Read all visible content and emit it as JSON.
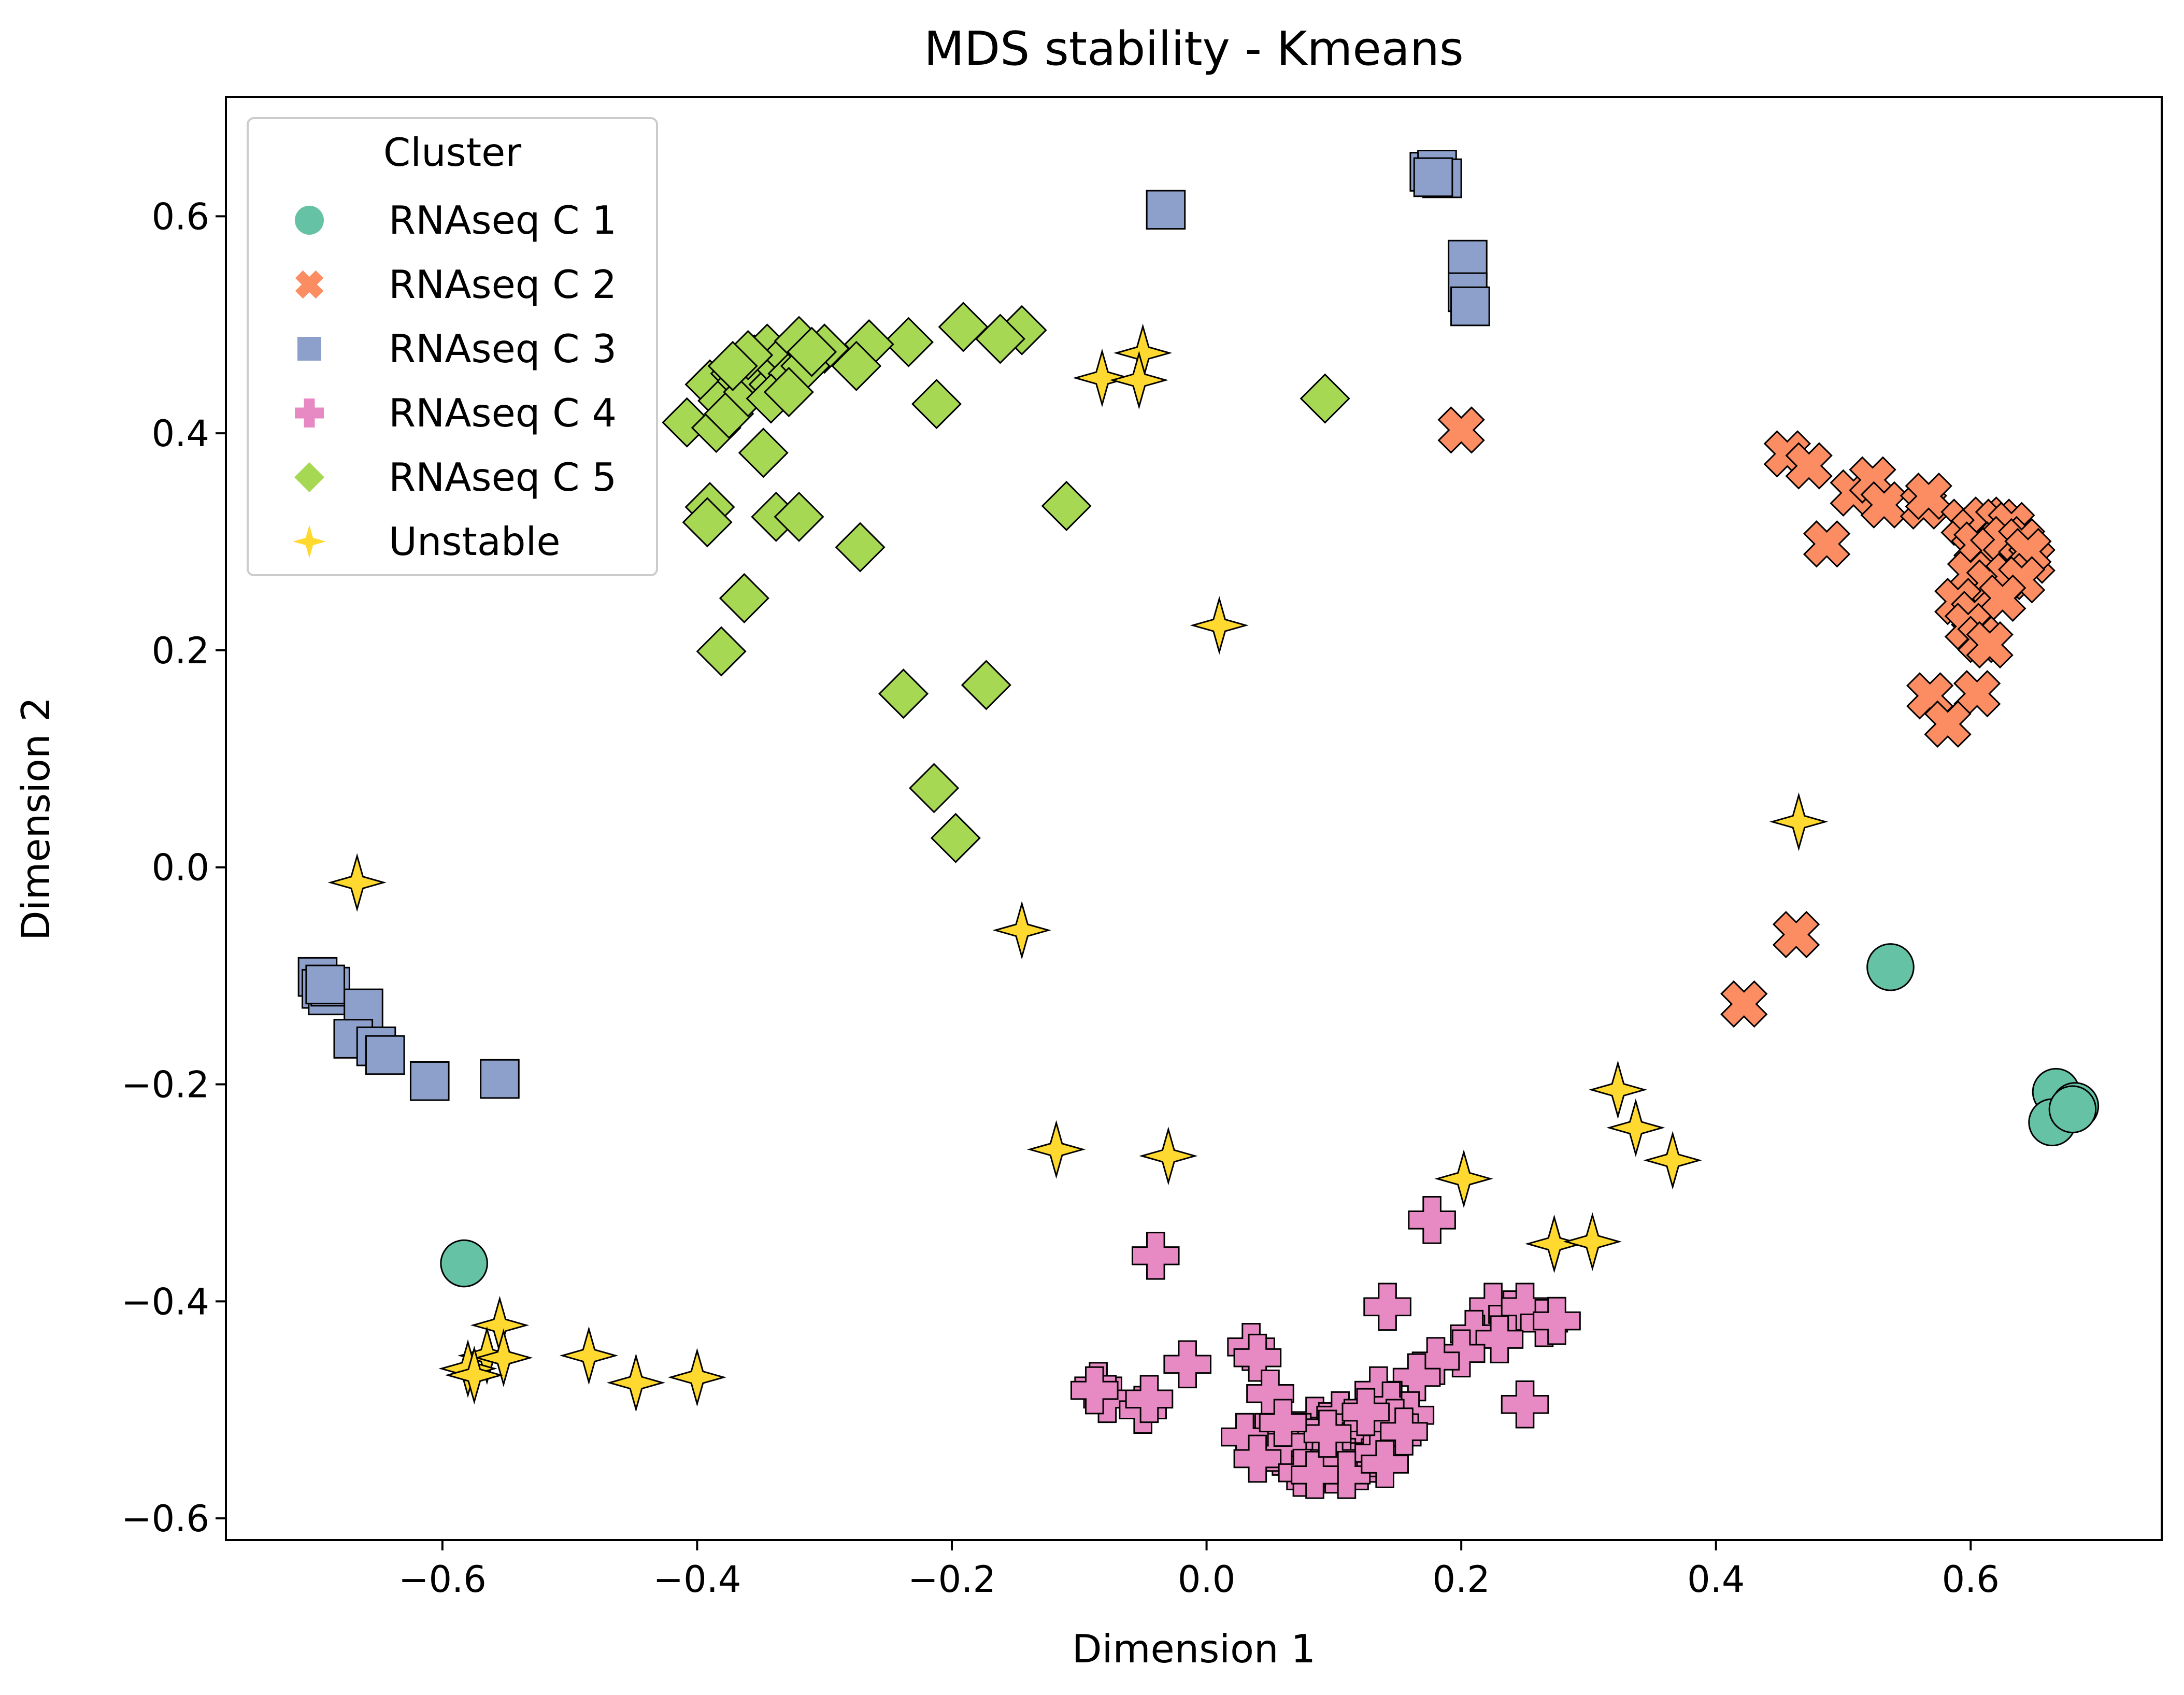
{
  "chart_data": {
    "type": "scatter",
    "title": "MDS stability - Kmeans",
    "xlabel": "Dimension 1",
    "ylabel": "Dimension 2",
    "xlim": [
      -0.77,
      0.75
    ],
    "ylim": [
      -0.62,
      0.71
    ],
    "xticks": [
      -0.6,
      -0.4,
      -0.2,
      0.0,
      0.2,
      0.4,
      0.6
    ],
    "xtick_labels": [
      "−0.6",
      "−0.4",
      "−0.2",
      "0.0",
      "0.2",
      "0.4",
      "0.6"
    ],
    "yticks": [
      -0.6,
      -0.4,
      -0.2,
      0.0,
      0.2,
      0.4,
      0.6
    ],
    "ytick_labels": [
      "−0.6",
      "−0.4",
      "−0.2",
      "0.0",
      "0.2",
      "0.4",
      "0.6"
    ],
    "grid": false,
    "legend": {
      "title": "Cluster",
      "placement": "top-left"
    },
    "series": [
      {
        "name": "RNAseq C 1",
        "marker": "circle",
        "color": "#66c2a5",
        "points": [
          [
            0.537,
            -0.092
          ],
          [
            0.667,
            -0.207
          ],
          [
            0.664,
            -0.235
          ],
          [
            0.682,
            -0.22
          ],
          [
            0.68,
            -0.223
          ],
          [
            -0.583,
            -0.365
          ]
        ]
      },
      {
        "name": "RNAseq C 2",
        "marker": "x",
        "color": "#fc8d62",
        "points": [
          [
            0.2,
            0.403
          ],
          [
            0.456,
            0.381
          ],
          [
            0.473,
            0.37
          ],
          [
            0.487,
            0.298
          ],
          [
            0.508,
            0.345
          ],
          [
            0.523,
            0.357
          ],
          [
            0.532,
            0.334
          ],
          [
            0.563,
            0.333
          ],
          [
            0.567,
            0.342
          ],
          [
            0.595,
            0.318
          ],
          [
            0.603,
            0.31
          ],
          [
            0.612,
            0.32
          ],
          [
            0.622,
            0.318
          ],
          [
            0.632,
            0.315
          ],
          [
            0.605,
            0.297
          ],
          [
            0.618,
            0.292
          ],
          [
            0.628,
            0.302
          ],
          [
            0.64,
            0.3
          ],
          [
            0.648,
            0.283
          ],
          [
            0.645,
            0.291
          ],
          [
            0.6,
            0.27
          ],
          [
            0.615,
            0.262
          ],
          [
            0.63,
            0.268
          ],
          [
            0.64,
            0.265
          ],
          [
            0.59,
            0.245
          ],
          [
            0.603,
            0.233
          ],
          [
            0.625,
            0.248
          ],
          [
            0.598,
            0.222
          ],
          [
            0.608,
            0.21
          ],
          [
            0.615,
            0.205
          ],
          [
            0.568,
            0.158
          ],
          [
            0.605,
            0.16
          ],
          [
            0.582,
            0.132
          ],
          [
            0.463,
            -0.062
          ],
          [
            0.422,
            -0.126
          ]
        ]
      },
      {
        "name": "RNAseq C 3",
        "marker": "square",
        "color": "#8da0cb",
        "points": [
          [
            -0.032,
            0.606
          ],
          [
            0.175,
            0.641
          ],
          [
            0.181,
            0.643
          ],
          [
            0.185,
            0.635
          ],
          [
            0.178,
            0.636
          ],
          [
            0.205,
            0.56
          ],
          [
            0.205,
            0.53
          ],
          [
            0.207,
            0.517
          ],
          [
            -0.698,
            -0.101
          ],
          [
            -0.695,
            -0.112
          ],
          [
            -0.69,
            -0.118
          ],
          [
            -0.688,
            -0.11
          ],
          [
            -0.692,
            -0.108
          ],
          [
            -0.662,
            -0.13
          ],
          [
            -0.67,
            -0.158
          ],
          [
            -0.652,
            -0.165
          ],
          [
            -0.645,
            -0.173
          ],
          [
            -0.61,
            -0.197
          ],
          [
            -0.555,
            -0.195
          ]
        ]
      },
      {
        "name": "RNAseq C 4",
        "marker": "plus",
        "color": "#e78ac3",
        "points": [
          [
            0.177,
            -0.325
          ],
          [
            -0.04,
            -0.358
          ],
          [
            0.142,
            -0.405
          ],
          [
            0.225,
            -0.405
          ],
          [
            0.24,
            -0.412
          ],
          [
            0.25,
            -0.405
          ],
          [
            0.265,
            -0.42
          ],
          [
            0.275,
            -0.418
          ],
          [
            0.21,
            -0.43
          ],
          [
            0.23,
            -0.435
          ],
          [
            0.2,
            -0.448
          ],
          [
            0.18,
            -0.455
          ],
          [
            0.165,
            -0.47
          ],
          [
            -0.085,
            -0.478
          ],
          [
            -0.078,
            -0.49
          ],
          [
            -0.088,
            -0.482
          ],
          [
            -0.05,
            -0.5
          ],
          [
            -0.045,
            -0.49
          ],
          [
            -0.015,
            -0.458
          ],
          [
            0.035,
            -0.442
          ],
          [
            0.04,
            -0.452
          ],
          [
            0.05,
            -0.485
          ],
          [
            0.25,
            -0.495
          ],
          [
            0.135,
            -0.482
          ],
          [
            0.145,
            -0.496
          ],
          [
            0.16,
            -0.505
          ],
          [
            0.085,
            -0.51
          ],
          [
            0.095,
            -0.515
          ],
          [
            0.105,
            -0.505
          ],
          [
            0.115,
            -0.512
          ],
          [
            0.125,
            -0.52
          ],
          [
            0.075,
            -0.525
          ],
          [
            0.085,
            -0.53
          ],
          [
            0.095,
            -0.535
          ],
          [
            0.105,
            -0.54
          ],
          [
            0.115,
            -0.53
          ],
          [
            0.13,
            -0.528
          ],
          [
            0.14,
            -0.535
          ],
          [
            0.15,
            -0.525
          ],
          [
            0.065,
            -0.54
          ],
          [
            0.07,
            -0.552
          ],
          [
            0.08,
            -0.548
          ],
          [
            0.09,
            -0.55
          ],
          [
            0.1,
            -0.555
          ],
          [
            0.11,
            -0.548
          ],
          [
            0.12,
            -0.552
          ],
          [
            0.13,
            -0.545
          ],
          [
            0.045,
            -0.525
          ],
          [
            0.05,
            -0.535
          ],
          [
            0.06,
            -0.53
          ],
          [
            0.03,
            -0.525
          ],
          [
            0.04,
            -0.545
          ],
          [
            0.075,
            -0.558
          ],
          [
            0.1,
            -0.545
          ],
          [
            0.135,
            -0.54
          ],
          [
            0.148,
            -0.512
          ],
          [
            0.155,
            -0.52
          ],
          [
            0.11,
            -0.56
          ],
          [
            0.085,
            -0.56
          ],
          [
            0.095,
            -0.522
          ],
          [
            0.125,
            -0.502
          ],
          [
            0.06,
            -0.512
          ],
          [
            0.14,
            -0.55
          ]
        ]
      },
      {
        "name": "RNAseq C 5",
        "marker": "diamond",
        "color": "#a6d854",
        "points": [
          [
            -0.191,
            0.498
          ],
          [
            -0.145,
            0.495
          ],
          [
            -0.162,
            0.487
          ],
          [
            -0.234,
            0.484
          ],
          [
            -0.265,
            0.482
          ],
          [
            -0.275,
            0.462
          ],
          [
            -0.3,
            0.478
          ],
          [
            -0.212,
            0.427
          ],
          [
            0.093,
            0.432
          ],
          [
            -0.408,
            0.41
          ],
          [
            -0.385,
            0.405
          ],
          [
            -0.39,
            0.445
          ],
          [
            -0.38,
            0.43
          ],
          [
            -0.375,
            0.418
          ],
          [
            -0.37,
            0.455
          ],
          [
            -0.365,
            0.448
          ],
          [
            -0.36,
            0.438
          ],
          [
            -0.355,
            0.468
          ],
          [
            -0.35,
            0.452
          ],
          [
            -0.345,
            0.478
          ],
          [
            -0.34,
            0.445
          ],
          [
            -0.335,
            0.46
          ],
          [
            -0.33,
            0.472
          ],
          [
            -0.325,
            0.455
          ],
          [
            -0.32,
            0.485
          ],
          [
            -0.315,
            0.462
          ],
          [
            -0.31,
            0.475
          ],
          [
            -0.342,
            0.432
          ],
          [
            -0.328,
            0.438
          ],
          [
            -0.36,
            0.472
          ],
          [
            -0.372,
            0.462
          ],
          [
            -0.348,
            0.382
          ],
          [
            -0.39,
            0.332
          ],
          [
            -0.392,
            0.318
          ],
          [
            -0.338,
            0.323
          ],
          [
            -0.32,
            0.323
          ],
          [
            -0.272,
            0.295
          ],
          [
            -0.11,
            0.333
          ],
          [
            -0.363,
            0.248
          ],
          [
            -0.381,
            0.199
          ],
          [
            -0.238,
            0.16
          ],
          [
            -0.173,
            0.168
          ],
          [
            -0.214,
            0.073
          ],
          [
            -0.197,
            0.027
          ]
        ]
      },
      {
        "name": "Unstable",
        "marker": "star4",
        "color": "#ffd92f",
        "points": [
          [
            -0.05,
            0.474
          ],
          [
            -0.082,
            0.451
          ],
          [
            -0.053,
            0.449
          ],
          [
            0.01,
            0.223
          ],
          [
            0.465,
            0.042
          ],
          [
            -0.667,
            -0.014
          ],
          [
            -0.145,
            -0.058
          ],
          [
            0.323,
            -0.205
          ],
          [
            0.337,
            -0.24
          ],
          [
            0.366,
            -0.27
          ],
          [
            -0.118,
            -0.26
          ],
          [
            -0.03,
            -0.266
          ],
          [
            0.202,
            -0.287
          ],
          [
            0.273,
            -0.347
          ],
          [
            0.303,
            -0.345
          ],
          [
            -0.555,
            -0.422
          ],
          [
            -0.565,
            -0.45
          ],
          [
            -0.552,
            -0.452
          ],
          [
            -0.58,
            -0.462
          ],
          [
            -0.575,
            -0.468
          ],
          [
            -0.485,
            -0.45
          ],
          [
            -0.448,
            -0.475
          ],
          [
            -0.4,
            -0.47
          ]
        ]
      }
    ]
  }
}
